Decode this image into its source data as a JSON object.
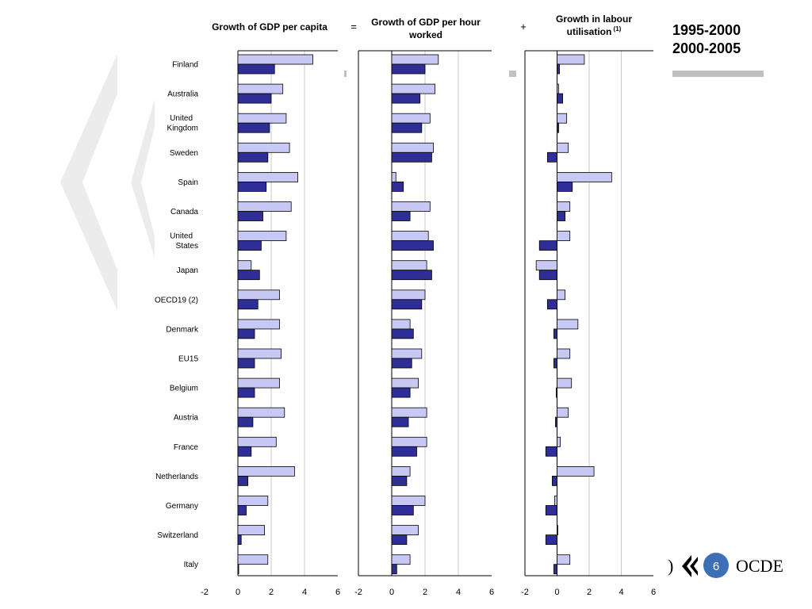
{
  "colors": {
    "series_1995_2000": "#c8c8f5",
    "series_2000_2005": "#2e2e96",
    "legend_bar": "#c0c0c0",
    "page_badge": "#3d6fb6",
    "chevron": "#ececec"
  },
  "slide": {
    "page_number": "6",
    "logo_text": "OCDE",
    "operators": [
      "=",
      "+"
    ]
  },
  "legend": {
    "items": [
      "1995-2000",
      "2000-2005"
    ]
  },
  "chart_data": {
    "type": "bar",
    "orientation": "horizontal",
    "categories": [
      "Finland",
      "Australia",
      "United Kingdom",
      "Sweden",
      "Spain",
      "Canada",
      "United States",
      "Japan",
      "OECD19 (2)",
      "Denmark",
      "EU15",
      "Belgium",
      "Austria",
      "France",
      "Netherlands",
      "Germany",
      "Switzerland",
      "Italy"
    ],
    "category_display": [
      [
        "Finland"
      ],
      [
        "Australia"
      ],
      [
        "United",
        "Kingdom"
      ],
      [
        "Sweden"
      ],
      [
        "Spain"
      ],
      [
        "Canada"
      ],
      [
        "United",
        "States"
      ],
      [
        "Japan"
      ],
      [
        "OECD19 (2)"
      ],
      [
        "Denmark"
      ],
      [
        "EU15"
      ],
      [
        "Belgium"
      ],
      [
        "Austria"
      ],
      [
        "France"
      ],
      [
        "Netherlands"
      ],
      [
        "Germany"
      ],
      [
        "Switzerland"
      ],
      [
        "Italy"
      ]
    ],
    "series_names": [
      "1995-2000",
      "2000-2005"
    ],
    "xlim": [
      -2,
      6
    ],
    "xticks": [
      -2,
      0,
      2,
      4,
      6
    ],
    "grid": true,
    "legend_position": "top-right",
    "panels": [
      {
        "title": [
          "Growth of GDP per capita"
        ],
        "title_sup": "",
        "series": [
          {
            "name": "1995-2000",
            "values": [
              4.5,
              2.7,
              2.9,
              3.1,
              3.6,
              3.2,
              2.9,
              0.8,
              2.5,
              2.5,
              2.6,
              2.5,
              2.8,
              2.3,
              3.4,
              1.8,
              1.6,
              1.8
            ]
          },
          {
            "name": "2000-2005",
            "values": [
              2.2,
              2.0,
              1.9,
              1.8,
              1.7,
              1.5,
              1.4,
              1.3,
              1.2,
              1.0,
              1.0,
              1.0,
              0.9,
              0.8,
              0.6,
              0.5,
              0.2,
              0.05
            ]
          }
        ]
      },
      {
        "title": [
          "Growth of GDP per hour",
          "worked"
        ],
        "title_sup": "",
        "series": [
          {
            "name": "1995-2000",
            "values": [
              2.8,
              2.6,
              2.3,
              2.5,
              0.25,
              2.3,
              2.2,
              2.1,
              2.0,
              1.1,
              1.8,
              1.6,
              2.1,
              2.1,
              1.1,
              2.0,
              1.6,
              1.1
            ]
          },
          {
            "name": "2000-2005",
            "values": [
              2.0,
              1.7,
              1.8,
              2.4,
              0.7,
              1.1,
              2.5,
              2.4,
              1.8,
              1.3,
              1.2,
              1.1,
              1.0,
              1.5,
              0.9,
              1.3,
              0.9,
              0.3
            ]
          }
        ]
      },
      {
        "title": [
          "Growth in labour",
          "utilisation"
        ],
        "title_sup": "(1)",
        "series": [
          {
            "name": "1995-2000",
            "values": [
              1.7,
              0.1,
              0.6,
              0.7,
              3.4,
              0.8,
              0.8,
              -1.3,
              0.5,
              1.3,
              0.8,
              0.9,
              0.7,
              0.2,
              2.3,
              -0.15,
              0.05,
              0.8
            ]
          },
          {
            "name": "2000-2005",
            "values": [
              0.15,
              0.35,
              0.1,
              -0.6,
              0.95,
              0.5,
              -1.1,
              -1.1,
              -0.6,
              -0.2,
              -0.2,
              -0.05,
              -0.1,
              -0.7,
              -0.3,
              -0.7,
              -0.7,
              -0.2
            ]
          }
        ]
      }
    ]
  }
}
